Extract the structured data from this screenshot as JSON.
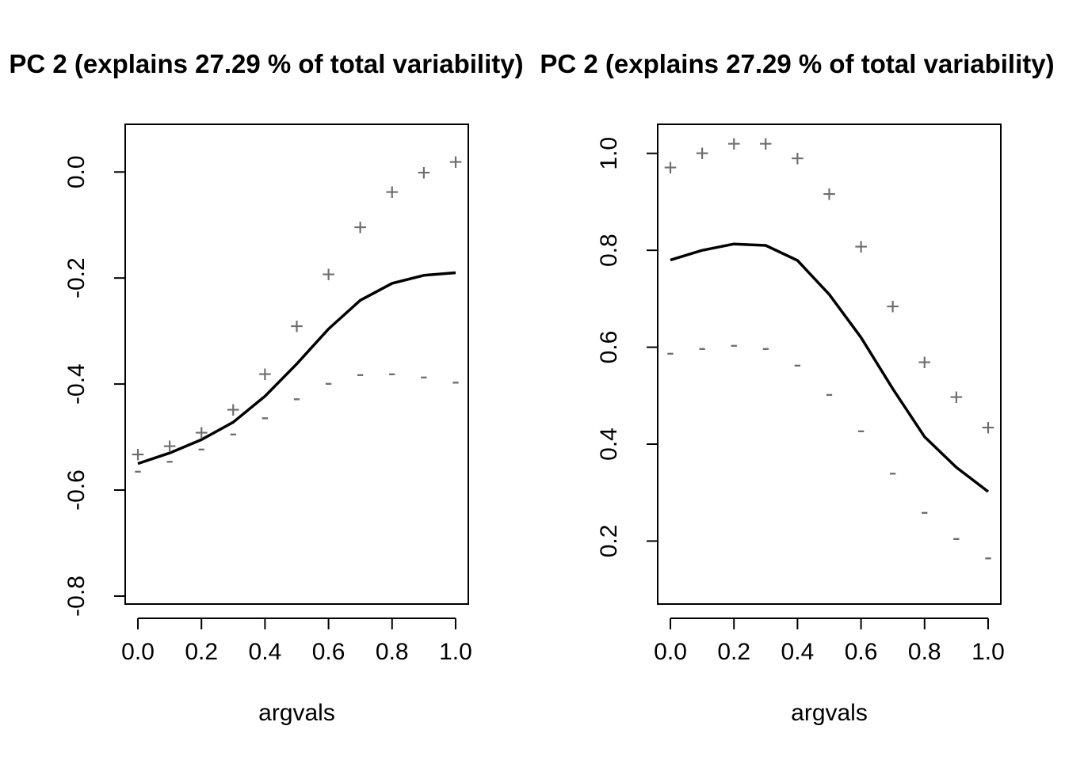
{
  "chart_data": [
    {
      "type": "line",
      "title": "PC 2 (explains 27.29 % of total variability)",
      "xlabel": "argvals",
      "ylabel": "",
      "xlim": [
        -0.04,
        1.04
      ],
      "ylim": [
        -0.815,
        0.09
      ],
      "xticks": [
        "0.0",
        "0.2",
        "0.4",
        "0.6",
        "0.8",
        "1.0"
      ],
      "yticks": [
        "-0.8",
        "-0.6",
        "-0.4",
        "-0.2",
        "0.0"
      ],
      "x": [
        0.0,
        0.1,
        0.2,
        0.3,
        0.4,
        0.5,
        0.6,
        0.7,
        0.8,
        0.9,
        1.0
      ],
      "series": [
        {
          "name": "mean",
          "style": "line",
          "values": [
            -0.55,
            -0.53,
            -0.505,
            -0.472,
            -0.423,
            -0.362,
            -0.296,
            -0.242,
            -0.21,
            -0.195,
            -0.19
          ]
        },
        {
          "name": "plus",
          "style": "+",
          "values": [
            -0.533,
            -0.517,
            -0.492,
            -0.448,
            -0.381,
            -0.291,
            -0.193,
            -0.104,
            -0.038,
            -0.001,
            0.019
          ]
        },
        {
          "name": "minus",
          "style": "-",
          "values": [
            -0.562,
            -0.543,
            -0.52,
            -0.492,
            -0.461,
            -0.425,
            -0.396,
            -0.38,
            -0.378,
            -0.384,
            -0.394
          ]
        }
      ],
      "grid": false,
      "legend": "none"
    },
    {
      "type": "line",
      "title": "PC 2 (explains 27.29 % of total variability)",
      "xlabel": "argvals",
      "ylabel": "",
      "xlim": [
        -0.04,
        1.04
      ],
      "ylim": [
        0.07,
        1.06
      ],
      "xticks": [
        "0.0",
        "0.2",
        "0.4",
        "0.6",
        "0.8",
        "1.0"
      ],
      "yticks": [
        "0.2",
        "0.4",
        "0.6",
        "0.8",
        "1.0"
      ],
      "x": [
        0.0,
        0.1,
        0.2,
        0.3,
        0.4,
        0.5,
        0.6,
        0.7,
        0.8,
        0.9,
        1.0
      ],
      "series": [
        {
          "name": "mean",
          "style": "line",
          "values": [
            0.78,
            0.8,
            0.813,
            0.81,
            0.779,
            0.709,
            0.62,
            0.514,
            0.415,
            0.352,
            0.302
          ]
        },
        {
          "name": "plus",
          "style": "+",
          "values": [
            0.971,
            1.0,
            1.02,
            1.02,
            0.99,
            0.916,
            0.808,
            0.684,
            0.569,
            0.497,
            0.434
          ]
        },
        {
          "name": "minus",
          "style": "-",
          "values": [
            0.59,
            0.6,
            0.607,
            0.6,
            0.566,
            0.505,
            0.43,
            0.343,
            0.262,
            0.208,
            0.168
          ]
        }
      ],
      "grid": false,
      "legend": "none"
    }
  ]
}
